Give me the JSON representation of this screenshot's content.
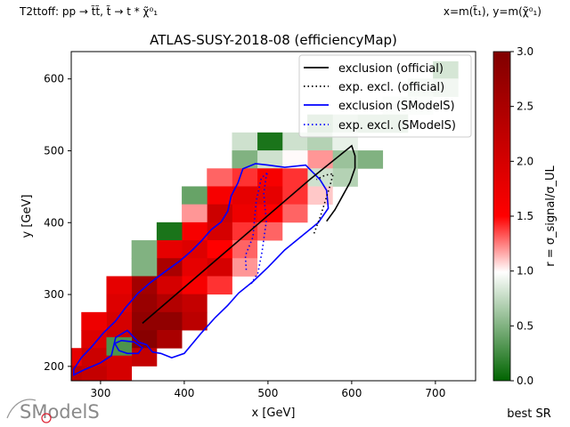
{
  "header": {
    "left": "T2ttoff: pp → t̃t̃, t̃ → t * χ̃⁰₁",
    "right": "x=m(t̃₁), y=m(χ̃⁰₁)"
  },
  "footer": {
    "logo_text": "SModelS",
    "right": "best SR"
  },
  "chart_data": {
    "type": "heatmap",
    "title": "ATLAS-SUSY-2018-08 (efficiencyMap)",
    "xlabel": "x [GeV]",
    "ylabel": "y [GeV]",
    "xlim": [
      265,
      748
    ],
    "ylim": [
      180,
      638
    ],
    "xticks": [
      300,
      400,
      500,
      600,
      700
    ],
    "yticks": [
      200,
      300,
      400,
      500,
      600
    ],
    "colorbar": {
      "label": "r = σ_signal/σ_UL",
      "range": [
        0.0,
        3.0
      ],
      "ticks": [
        "0.0",
        "0.5",
        "1.0",
        "1.5",
        "2.0",
        "2.5",
        "3.0"
      ],
      "colormap": [
        [
          0.0,
          "#006400"
        ],
        [
          0.33,
          "#ffffff"
        ],
        [
          0.5,
          "#ff0000"
        ],
        [
          1.0,
          "#800000"
        ]
      ]
    },
    "legend": {
      "position": "top-right",
      "entries": [
        {
          "label": "exclusion (official)",
          "color": "#000000",
          "style": "solid"
        },
        {
          "label": "exp. excl. (official)",
          "color": "#000000",
          "style": "dotted"
        },
        {
          "label": "exclusion (SModelS)",
          "color": "#0000ff",
          "style": "solid"
        },
        {
          "label": "exp. excl. (SModelS)",
          "color": "#0000ff",
          "style": "dotted"
        }
      ]
    },
    "cell_size": [
      30,
      25
    ],
    "cells": [
      {
        "x": 712,
        "y": 612,
        "r": 0.1
      },
      {
        "x": 712,
        "y": 588,
        "r": 0.7
      },
      {
        "x": 682,
        "y": 588,
        "r": 0.8
      },
      {
        "x": 682,
        "y": 563,
        "r": 0.9
      },
      {
        "x": 652,
        "y": 563,
        "r": 0.9
      },
      {
        "x": 652,
        "y": 538,
        "r": 0.6
      },
      {
        "x": 622,
        "y": 538,
        "r": 0.6
      },
      {
        "x": 592,
        "y": 538,
        "r": 0.7
      },
      {
        "x": 562,
        "y": 538,
        "r": 0.5
      },
      {
        "x": 532,
        "y": 513,
        "r": 0.8
      },
      {
        "x": 502,
        "y": 513,
        "r": 0.1
      },
      {
        "x": 472,
        "y": 513,
        "r": 0.8
      },
      {
        "x": 562,
        "y": 513,
        "r": 0.7
      },
      {
        "x": 592,
        "y": 513,
        "r": 0.9
      },
      {
        "x": 622,
        "y": 488,
        "r": 0.5
      },
      {
        "x": 592,
        "y": 488,
        "r": 0.6
      },
      {
        "x": 562,
        "y": 488,
        "r": 1.2
      },
      {
        "x": 532,
        "y": 488,
        "r": 1.0
      },
      {
        "x": 502,
        "y": 488,
        "r": 0.8
      },
      {
        "x": 472,
        "y": 488,
        "r": 0.5
      },
      {
        "x": 592,
        "y": 463,
        "r": 0.7
      },
      {
        "x": 562,
        "y": 463,
        "r": 0.8
      },
      {
        "x": 532,
        "y": 463,
        "r": 1.4
      },
      {
        "x": 502,
        "y": 463,
        "r": 1.6
      },
      {
        "x": 472,
        "y": 463,
        "r": 1.4
      },
      {
        "x": 442,
        "y": 463,
        "r": 1.3
      },
      {
        "x": 562,
        "y": 438,
        "r": 1.1
      },
      {
        "x": 532,
        "y": 438,
        "r": 1.4
      },
      {
        "x": 502,
        "y": 438,
        "r": 1.8
      },
      {
        "x": 472,
        "y": 438,
        "r": 1.8
      },
      {
        "x": 442,
        "y": 438,
        "r": 1.6
      },
      {
        "x": 412,
        "y": 438,
        "r": 0.4
      },
      {
        "x": 532,
        "y": 413,
        "r": 1.3
      },
      {
        "x": 502,
        "y": 413,
        "r": 1.5
      },
      {
        "x": 472,
        "y": 413,
        "r": 1.7
      },
      {
        "x": 442,
        "y": 413,
        "r": 2.1
      },
      {
        "x": 412,
        "y": 413,
        "r": 1.2
      },
      {
        "x": 502,
        "y": 388,
        "r": 1.3
      },
      {
        "x": 472,
        "y": 388,
        "r": 1.4
      },
      {
        "x": 442,
        "y": 388,
        "r": 2.0
      },
      {
        "x": 412,
        "y": 388,
        "r": 1.6
      },
      {
        "x": 382,
        "y": 388,
        "r": 0.1
      },
      {
        "x": 472,
        "y": 363,
        "r": 1.3
      },
      {
        "x": 442,
        "y": 363,
        "r": 1.5
      },
      {
        "x": 412,
        "y": 363,
        "r": 1.9
      },
      {
        "x": 382,
        "y": 363,
        "r": 1.8
      },
      {
        "x": 352,
        "y": 363,
        "r": 0.5
      },
      {
        "x": 472,
        "y": 338,
        "r": 1.2
      },
      {
        "x": 442,
        "y": 338,
        "r": 2.0
      },
      {
        "x": 412,
        "y": 338,
        "r": 1.8
      },
      {
        "x": 382,
        "y": 338,
        "r": 2.5
      },
      {
        "x": 352,
        "y": 338,
        "r": 0.5
      },
      {
        "x": 442,
        "y": 313,
        "r": 1.4
      },
      {
        "x": 412,
        "y": 313,
        "r": 1.6
      },
      {
        "x": 382,
        "y": 313,
        "r": 2.0
      },
      {
        "x": 352,
        "y": 313,
        "r": 2.6
      },
      {
        "x": 322,
        "y": 313,
        "r": 1.8
      },
      {
        "x": 412,
        "y": 288,
        "r": 2.2
      },
      {
        "x": 382,
        "y": 288,
        "r": 2.4
      },
      {
        "x": 352,
        "y": 288,
        "r": 2.7
      },
      {
        "x": 322,
        "y": 288,
        "r": 1.9
      },
      {
        "x": 412,
        "y": 263,
        "r": 2.3
      },
      {
        "x": 382,
        "y": 263,
        "r": 2.8
      },
      {
        "x": 352,
        "y": 263,
        "r": 2.8
      },
      {
        "x": 322,
        "y": 263,
        "r": 2.0
      },
      {
        "x": 292,
        "y": 263,
        "r": 1.7
      },
      {
        "x": 382,
        "y": 238,
        "r": 2.5
      },
      {
        "x": 352,
        "y": 238,
        "r": 2.9
      },
      {
        "x": 322,
        "y": 238,
        "r": 2.1
      },
      {
        "x": 292,
        "y": 238,
        "r": 1.9
      },
      {
        "x": 352,
        "y": 213,
        "r": 2.2
      },
      {
        "x": 322,
        "y": 213,
        "r": 2.0
      },
      {
        "x": 292,
        "y": 213,
        "r": 2.1
      },
      {
        "x": 262,
        "y": 213,
        "r": 1.8
      },
      {
        "x": 322,
        "y": 188,
        "r": 2.0
      },
      {
        "x": 292,
        "y": 188,
        "r": 2.2
      },
      {
        "x": 262,
        "y": 188,
        "r": 2.3
      },
      {
        "x": 322,
        "y": 228,
        "r": 0.3
      }
    ],
    "contours": {
      "exclusion_official": [
        [
          350,
          260
        ],
        [
          400,
          310
        ],
        [
          450,
          360
        ],
        [
          500,
          410
        ],
        [
          550,
          460
        ],
        [
          600,
          507
        ],
        [
          604,
          493
        ],
        [
          604,
          476
        ],
        [
          598,
          456
        ],
        [
          580,
          418
        ],
        [
          570,
          402
        ]
      ],
      "exp_excl_official": [
        [
          555,
          385
        ],
        [
          563,
          410
        ],
        [
          573,
          447
        ],
        [
          578,
          468
        ],
        [
          568,
          466
        ],
        [
          558,
          460
        ]
      ],
      "exclusion_smodels": [
        [
          268,
          188
        ],
        [
          280,
          195
        ],
        [
          300,
          205
        ],
        [
          313,
          215
        ],
        [
          318,
          240
        ],
        [
          332,
          250
        ],
        [
          345,
          234
        ],
        [
          355,
          230
        ],
        [
          362,
          220
        ],
        [
          372,
          218
        ],
        [
          385,
          212
        ],
        [
          400,
          218
        ],
        [
          420,
          246
        ],
        [
          437,
          268
        ],
        [
          452,
          285
        ],
        [
          465,
          302
        ],
        [
          482,
          318
        ],
        [
          500,
          338
        ],
        [
          520,
          362
        ],
        [
          540,
          381
        ],
        [
          560,
          400
        ],
        [
          572,
          420
        ],
        [
          570,
          445
        ],
        [
          562,
          460
        ],
        [
          545,
          480
        ],
        [
          520,
          477
        ],
        [
          500,
          480
        ],
        [
          485,
          482
        ],
        [
          470,
          475
        ],
        [
          464,
          455
        ],
        [
          456,
          437
        ],
        [
          452,
          416
        ],
        [
          444,
          401
        ],
        [
          432,
          390
        ],
        [
          420,
          374
        ],
        [
          408,
          360
        ],
        [
          395,
          347
        ],
        [
          375,
          330
        ],
        [
          360,
          317
        ],
        [
          345,
          302
        ],
        [
          330,
          282
        ],
        [
          318,
          263
        ],
        [
          303,
          246
        ],
        [
          290,
          228
        ],
        [
          277,
          212
        ],
        [
          268,
          196
        ]
      ],
      "smodels_hole": [
        [
          317,
          232
        ],
        [
          322,
          222
        ],
        [
          332,
          218
        ],
        [
          345,
          218
        ],
        [
          350,
          226
        ],
        [
          340,
          234
        ],
        [
          325,
          236
        ]
      ],
      "exp_excl_smodels": [
        [
          480,
          315
        ],
        [
          488,
          330
        ],
        [
          493,
          360
        ],
        [
          498,
          402
        ],
        [
          495,
          440
        ],
        [
          498,
          466
        ],
        [
          500,
          470
        ],
        [
          492,
          462
        ],
        [
          486,
          430
        ],
        [
          482,
          380
        ],
        [
          473,
          354
        ],
        [
          474,
          334
        ]
      ]
    }
  }
}
